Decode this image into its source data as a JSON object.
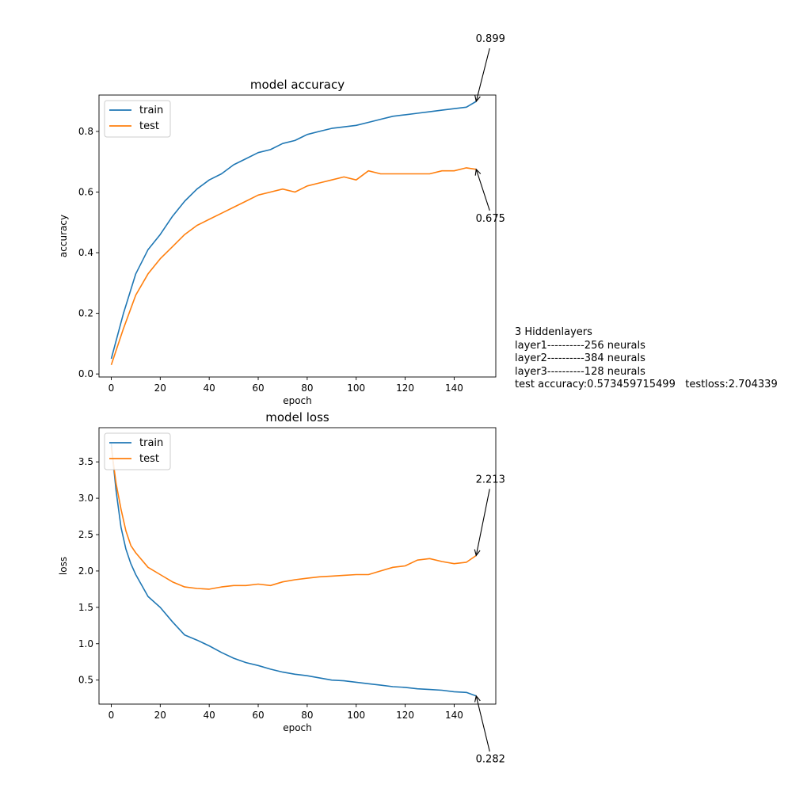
{
  "chart_data": [
    {
      "type": "line",
      "title": "model accuracy",
      "xlabel": "epoch",
      "ylabel": "accuracy",
      "xlim": [
        -5,
        157
      ],
      "ylim": [
        -0.01,
        0.92
      ],
      "xticks": [
        0,
        20,
        40,
        60,
        80,
        100,
        120,
        140
      ],
      "xtick_labels": [
        "0",
        "20",
        "40",
        "60",
        "80",
        "100",
        "120",
        "140"
      ],
      "yticks": [
        0.0,
        0.2,
        0.4,
        0.6,
        0.8
      ],
      "ytick_labels": [
        "0.0",
        "0.2",
        "0.4",
        "0.6",
        "0.8"
      ],
      "legend_position": "upper-left",
      "series": [
        {
          "name": "train",
          "color": "#1f77b4",
          "x": [
            0,
            5,
            10,
            15,
            20,
            25,
            30,
            35,
            40,
            45,
            50,
            55,
            60,
            65,
            70,
            75,
            80,
            85,
            90,
            95,
            100,
            105,
            110,
            115,
            120,
            125,
            130,
            135,
            140,
            145,
            149
          ],
          "y": [
            0.05,
            0.2,
            0.33,
            0.41,
            0.46,
            0.52,
            0.57,
            0.61,
            0.64,
            0.66,
            0.69,
            0.71,
            0.73,
            0.74,
            0.76,
            0.77,
            0.79,
            0.8,
            0.81,
            0.815,
            0.82,
            0.83,
            0.84,
            0.85,
            0.855,
            0.86,
            0.865,
            0.87,
            0.875,
            0.88,
            0.899
          ]
        },
        {
          "name": "test",
          "color": "#ff7f0e",
          "x": [
            0,
            5,
            10,
            15,
            20,
            25,
            30,
            35,
            40,
            45,
            50,
            55,
            60,
            65,
            70,
            75,
            80,
            85,
            90,
            95,
            100,
            105,
            110,
            115,
            120,
            125,
            130,
            135,
            140,
            145,
            149
          ],
          "y": [
            0.03,
            0.15,
            0.26,
            0.33,
            0.38,
            0.42,
            0.46,
            0.49,
            0.51,
            0.53,
            0.55,
            0.57,
            0.59,
            0.6,
            0.61,
            0.6,
            0.62,
            0.63,
            0.64,
            0.65,
            0.64,
            0.67,
            0.66,
            0.66,
            0.66,
            0.66,
            0.66,
            0.67,
            0.67,
            0.68,
            0.675
          ]
        }
      ],
      "annotations": [
        {
          "text": "0.899",
          "series": "train",
          "x": 149,
          "y": 0.899
        },
        {
          "text": "0.675",
          "series": "test",
          "x": 149,
          "y": 0.675
        }
      ]
    },
    {
      "type": "line",
      "title": "model loss",
      "xlabel": "epoch",
      "ylabel": "loss",
      "xlim": [
        -5,
        157
      ],
      "ylim": [
        0.17,
        3.97
      ],
      "xticks": [
        0,
        20,
        40,
        60,
        80,
        100,
        120,
        140
      ],
      "xtick_labels": [
        "0",
        "20",
        "40",
        "60",
        "80",
        "100",
        "120",
        "140"
      ],
      "yticks": [
        0.5,
        1.0,
        1.5,
        2.0,
        2.5,
        3.0,
        3.5
      ],
      "ytick_labels": [
        "0.5",
        "1.0",
        "1.5",
        "2.0",
        "2.5",
        "3.0",
        "3.5"
      ],
      "legend_position": "upper-left",
      "series": [
        {
          "name": "train",
          "color": "#1f77b4",
          "x": [
            0,
            2,
            4,
            6,
            8,
            10,
            15,
            20,
            25,
            30,
            35,
            40,
            45,
            50,
            55,
            60,
            65,
            70,
            75,
            80,
            85,
            90,
            95,
            100,
            105,
            110,
            115,
            120,
            125,
            130,
            135,
            140,
            145,
            149
          ],
          "y": [
            3.75,
            3.1,
            2.6,
            2.3,
            2.1,
            1.95,
            1.65,
            1.5,
            1.3,
            1.12,
            1.05,
            0.97,
            0.88,
            0.8,
            0.74,
            0.7,
            0.65,
            0.61,
            0.58,
            0.56,
            0.53,
            0.5,
            0.49,
            0.47,
            0.45,
            0.43,
            0.41,
            0.4,
            0.38,
            0.37,
            0.36,
            0.34,
            0.33,
            0.282
          ]
        },
        {
          "name": "test",
          "color": "#ff7f0e",
          "x": [
            0,
            2,
            4,
            6,
            8,
            10,
            15,
            20,
            25,
            30,
            35,
            40,
            45,
            50,
            55,
            60,
            65,
            70,
            75,
            80,
            85,
            90,
            95,
            100,
            105,
            110,
            115,
            120,
            125,
            130,
            135,
            140,
            145,
            149
          ],
          "y": [
            3.7,
            3.2,
            2.85,
            2.55,
            2.35,
            2.25,
            2.05,
            1.95,
            1.85,
            1.78,
            1.76,
            1.75,
            1.78,
            1.8,
            1.8,
            1.82,
            1.8,
            1.85,
            1.88,
            1.9,
            1.92,
            1.93,
            1.94,
            1.95,
            1.95,
            2.0,
            2.05,
            2.07,
            2.15,
            2.17,
            2.13,
            2.1,
            2.12,
            2.213
          ]
        }
      ],
      "annotations": [
        {
          "text": "2.213",
          "series": "test",
          "x": 149,
          "y": 2.213
        },
        {
          "text": "0.282",
          "series": "train",
          "x": 149,
          "y": 0.282
        }
      ]
    }
  ],
  "info": {
    "line1": "3 Hiddenlayers",
    "line2": "layer1----------256 neurals",
    "line3": "layer2----------384 neurals",
    "line4": "layer3----------128 neurals",
    "line5": "test accuracy:0.573459715499   testloss:2.704339"
  }
}
